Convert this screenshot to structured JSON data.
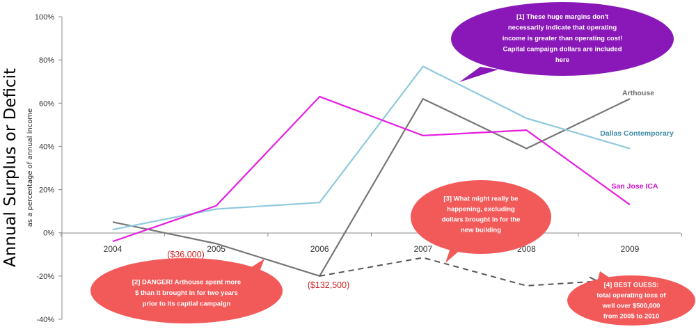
{
  "chart_data": {
    "type": "line",
    "ylabel": "Annual Surplus or Deficit",
    "ysublabel": "as a percentage of annual income",
    "x": [
      "2004",
      "2005",
      "2006",
      "2007",
      "2008",
      "2009"
    ],
    "yticks": [
      "100%",
      "80%",
      "60%",
      "40%",
      "20%",
      "0%",
      "-20%",
      "-40%"
    ],
    "ylim": [
      -40,
      100
    ],
    "grid": false,
    "series": [
      {
        "name": "Arthouse",
        "color": "#767676",
        "values": [
          5,
          -5,
          -20,
          62,
          39,
          62
        ]
      },
      {
        "name": "Dallas Contemporary",
        "color": "#8ec9dc",
        "values": [
          1.5,
          11,
          14,
          77,
          53,
          39
        ]
      },
      {
        "name": "San Jose ICA",
        "color": "#e61ee0",
        "values": [
          -4,
          12.5,
          63,
          45,
          47.5,
          13
        ]
      }
    ],
    "projection": {
      "color": "#555555",
      "x": [
        "2006",
        "2007",
        "2008",
        "2009"
      ],
      "values": [
        -20,
        -11.5,
        -24.5,
        -21.5
      ]
    },
    "annotations": {
      "loss_2005": "($36,000)",
      "loss_2006": "($132,500)"
    },
    "notes": {
      "note1": [
        "[1] These huge margins don't",
        "necessarily indicate that operating",
        "income is greater than operating cost!",
        "Capital campaign dollars are included",
        "here"
      ],
      "note2": [
        "[2] DANGER! Arthouse spent more",
        "$ than it brought in for two years",
        "prior to its captial campaign"
      ],
      "note3": [
        "[3] What might really be",
        "happening, excluding",
        "dollars brought in for the",
        "new building"
      ],
      "note4": [
        "[4] BEST GUESS:",
        "total operating loss of",
        "well over $500,000",
        "from 2005 to 2010"
      ]
    },
    "colors": {
      "note1_bg": "#8a18b8",
      "note_red_bg": "#f25a5a",
      "annotation_red": "#d42020"
    }
  }
}
